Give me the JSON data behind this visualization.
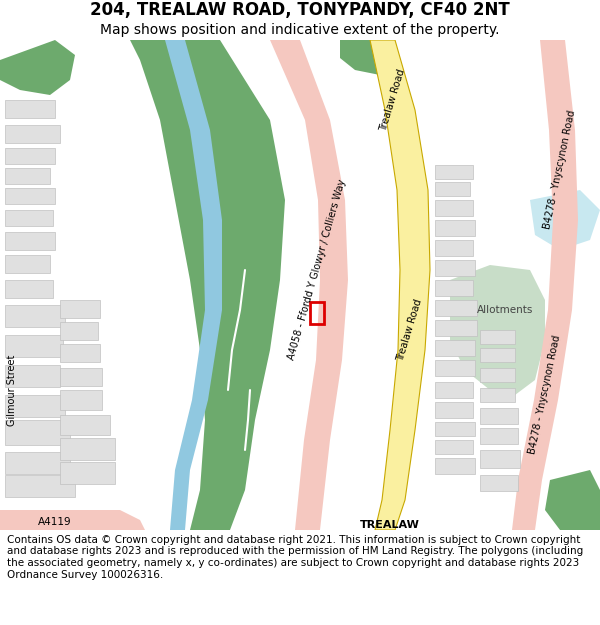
{
  "title": "204, TREALAW ROAD, TONYPANDY, CF40 2NT",
  "subtitle": "Map shows position and indicative extent of the property.",
  "footer": "Contains OS data © Crown copyright and database right 2021. This information is subject to Crown copyright and database rights 2023 and is reproduced with the permission of HM Land Registry. The polygons (including the associated geometry, namely x, y co-ordinates) are subject to Crown copyright and database rights 2023 Ordnance Survey 100026316.",
  "map_bg": "#f2f2f2",
  "white_bg": "#ffffff",
  "road_yellow_fill": "#faf0a0",
  "road_yellow_edge": "#c8a800",
  "road_pink_fill": "#f5c8c0",
  "road_pink_edge": "#e8a090",
  "road_orange_fill": "#f0c8a8",
  "green_dark": "#6daa6d",
  "green_light": "#c8ddc8",
  "blue_river": "#90c8e0",
  "building_fill": "#e0e0e0",
  "building_edge": "#c0c0c0",
  "red_box": "#dd0000",
  "title_fontsize": 12,
  "subtitle_fontsize": 10,
  "footer_fontsize": 7.5
}
